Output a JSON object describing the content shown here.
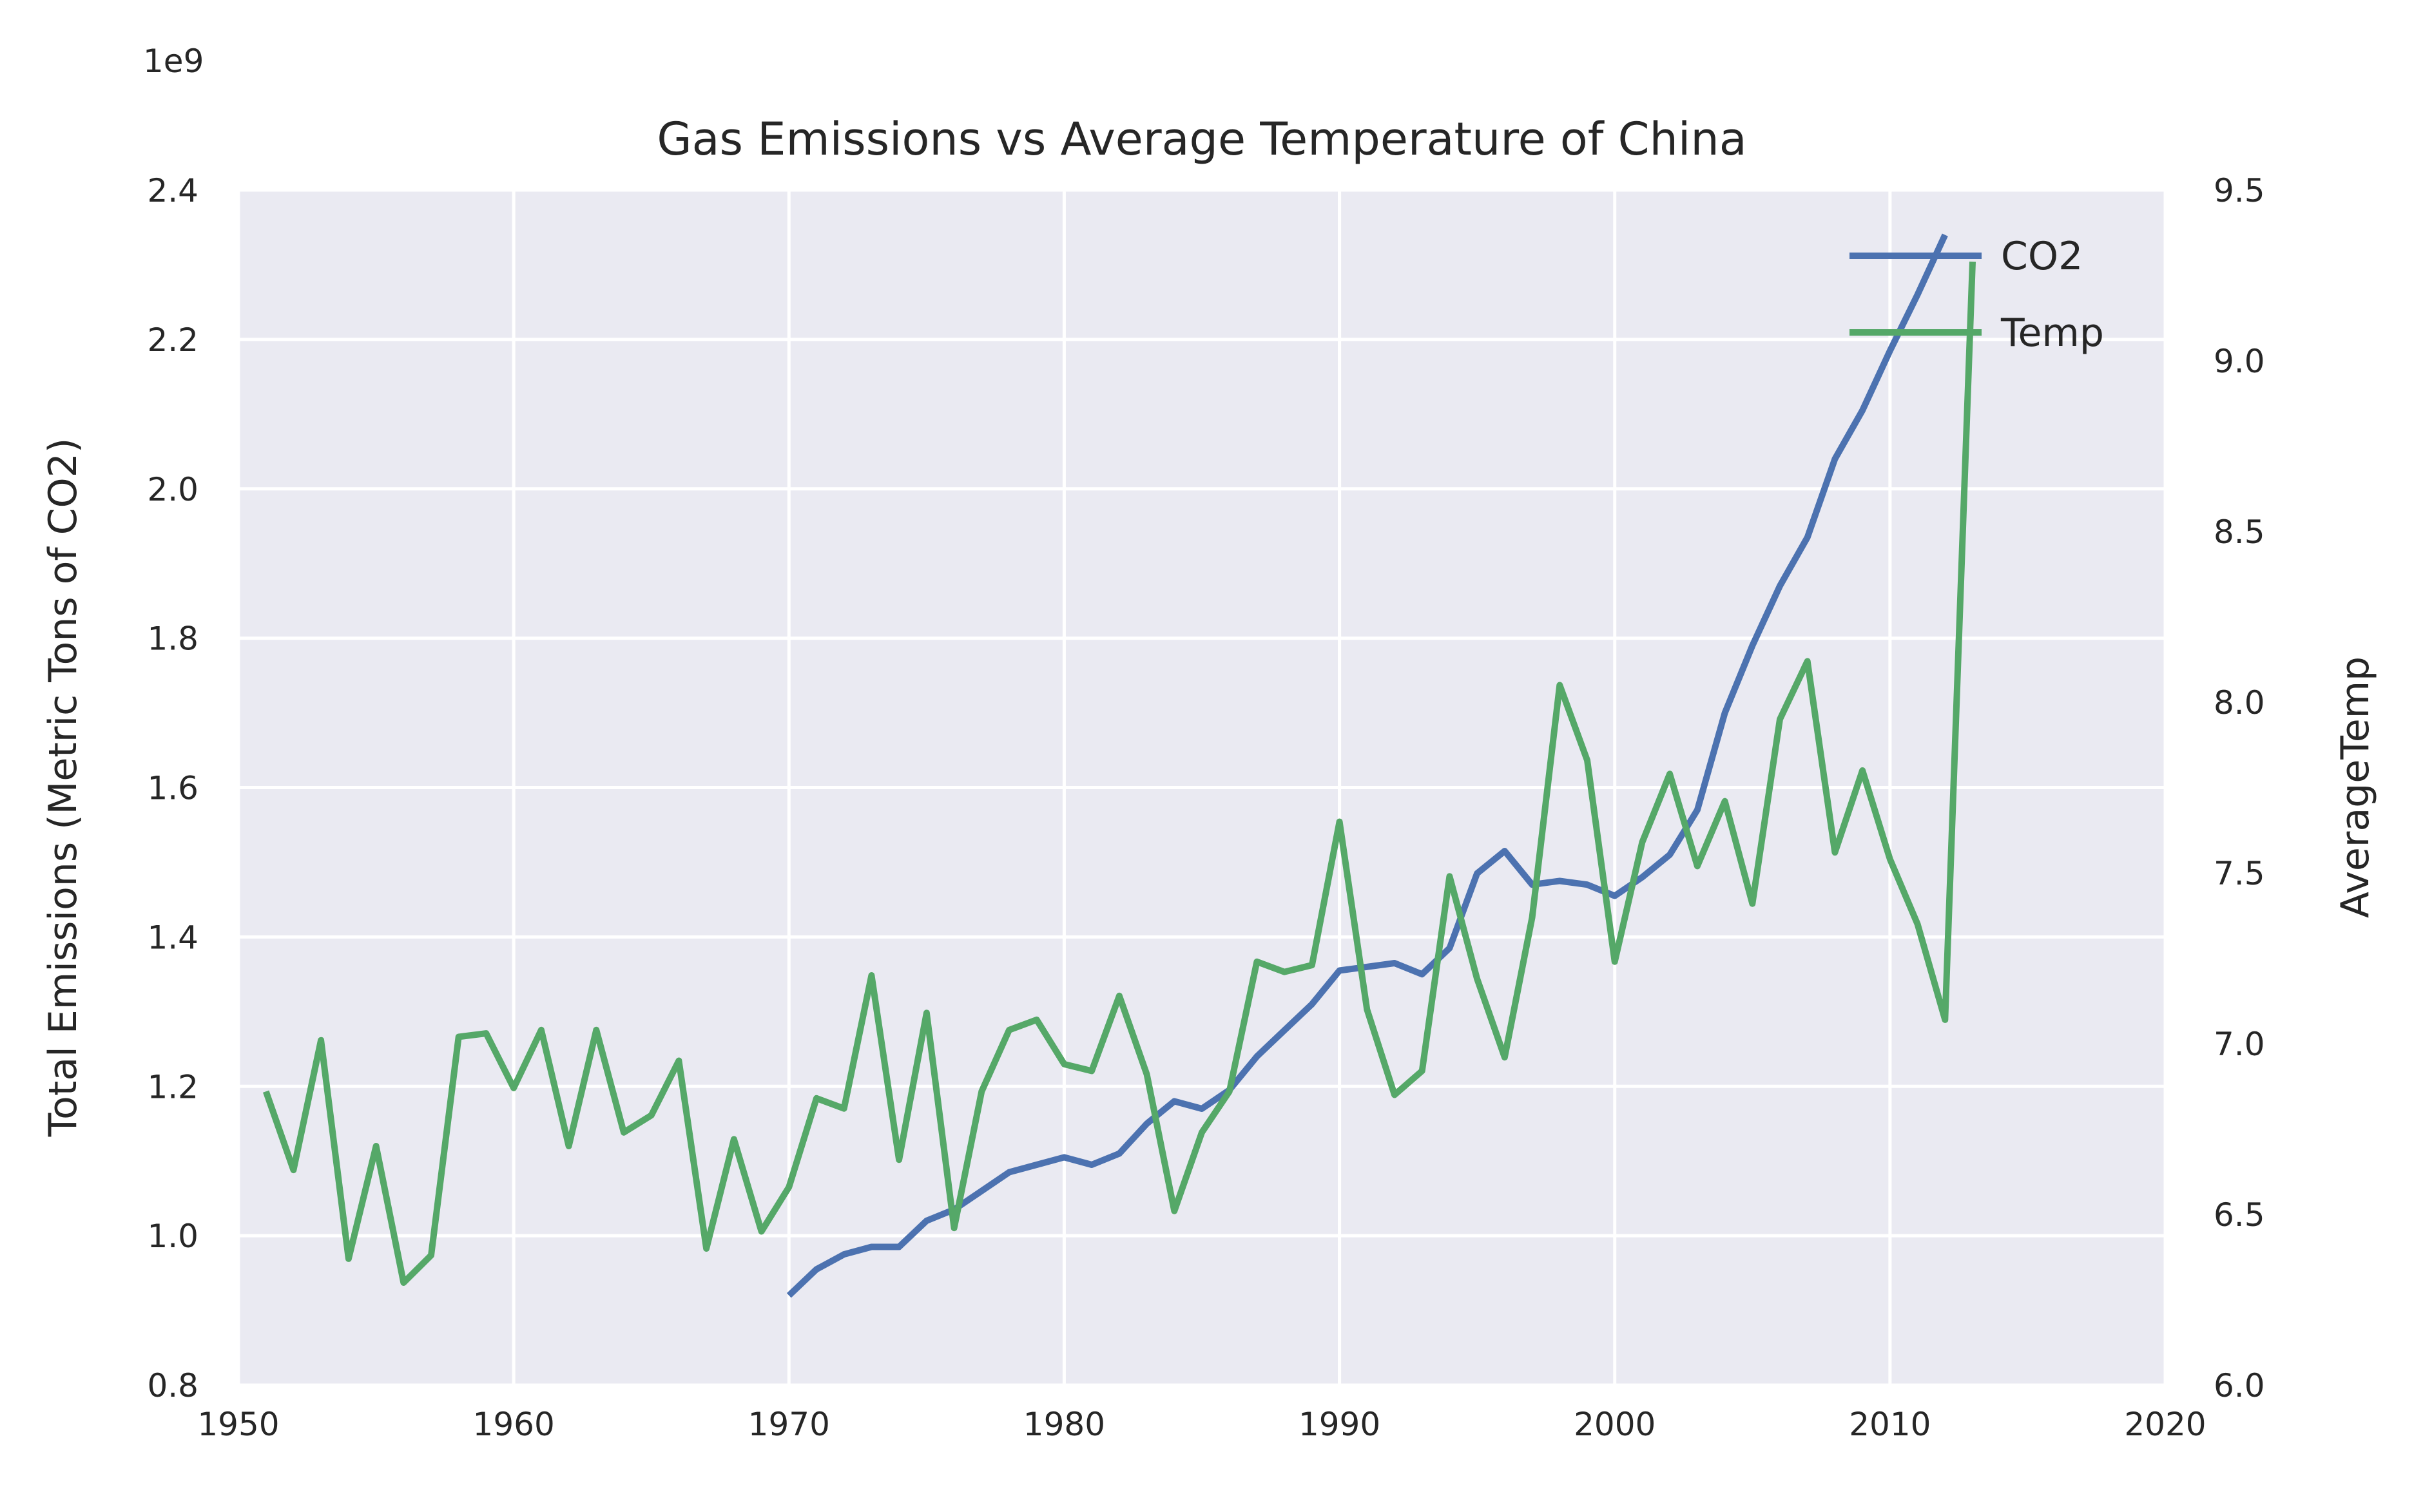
{
  "chart_data": {
    "type": "line",
    "title": "Gas Emissions vs Average Temperature of China",
    "xlabel": "",
    "ylabel": "Total Emissions (Metric Tons of CO2)",
    "ylabel_right": "AverageTemp",
    "left_axis_offset": "1e9",
    "xlim": [
      1950,
      2020
    ],
    "ylim": [
      0.8,
      2.4
    ],
    "ylim_right": [
      6.0,
      9.5
    ],
    "x_ticks": [
      "1950",
      "1960",
      "1970",
      "1980",
      "1990",
      "2000",
      "2010",
      "2020"
    ],
    "y_ticks": [
      "0.8",
      "1.0",
      "1.2",
      "1.4",
      "1.6",
      "1.8",
      "2.0",
      "2.2",
      "2.4"
    ],
    "y_ticks_right": [
      "6.0",
      "6.5",
      "7.0",
      "7.5",
      "8.0",
      "8.5",
      "9.0",
      "9.5"
    ],
    "grid": true,
    "legend_position": "top-right",
    "series": [
      {
        "name": "CO2",
        "axis": "left",
        "color": "#4c72b0",
        "x": [
          1970,
          1971,
          1972,
          1973,
          1974,
          1975,
          1976,
          1977,
          1978,
          1979,
          1980,
          1981,
          1982,
          1983,
          1984,
          1985,
          1986,
          1987,
          1988,
          1989,
          1990,
          1991,
          1992,
          1993,
          1994,
          1995,
          1996,
          1997,
          1998,
          1999,
          2000,
          2001,
          2002,
          2003,
          2004,
          2005,
          2006,
          2007,
          2008,
          2009,
          2010,
          2011,
          2012
        ],
        "values": [
          0.92,
          0.955,
          0.975,
          0.985,
          0.985,
          1.02,
          1.035,
          1.06,
          1.085,
          1.095,
          1.105,
          1.095,
          1.11,
          1.15,
          1.18,
          1.17,
          1.195,
          1.24,
          1.275,
          1.31,
          1.355,
          1.36,
          1.365,
          1.35,
          1.385,
          1.485,
          1.515,
          1.47,
          1.475,
          1.47,
          1.455,
          1.48,
          1.51,
          1.57,
          1.7,
          1.79,
          1.87,
          1.935,
          2.04,
          2.105,
          2.185,
          2.26,
          2.34
        ]
      },
      {
        "name": "Temp",
        "axis": "right",
        "color": "#55a868",
        "x": [
          1951,
          1952,
          1953,
          1954,
          1955,
          1956,
          1957,
          1958,
          1959,
          1960,
          1961,
          1962,
          1963,
          1964,
          1965,
          1966,
          1967,
          1968,
          1969,
          1970,
          1971,
          1972,
          1973,
          1974,
          1975,
          1976,
          1977,
          1978,
          1979,
          1980,
          1981,
          1982,
          1983,
          1984,
          1985,
          1986,
          1987,
          1988,
          1989,
          1990,
          1991,
          1992,
          1993,
          1994,
          1995,
          1996,
          1997,
          1998,
          1999,
          2000,
          2001,
          2002,
          2003,
          2004,
          2005,
          2006,
          2007,
          2008,
          2009,
          2010,
          2011,
          2012,
          2013
        ],
        "values": [
          6.86,
          6.63,
          7.01,
          6.37,
          6.7,
          6.3,
          6.38,
          7.02,
          7.03,
          6.87,
          7.04,
          6.7,
          7.04,
          6.74,
          6.79,
          6.95,
          6.4,
          6.72,
          6.45,
          6.58,
          6.84,
          6.81,
          7.2,
          6.66,
          7.09,
          6.46,
          6.86,
          7.04,
          7.07,
          6.94,
          6.92,
          7.14,
          6.91,
          6.51,
          6.74,
          6.86,
          7.24,
          7.21,
          7.23,
          7.65,
          7.1,
          6.85,
          6.92,
          7.49,
          7.19,
          6.96,
          7.37,
          8.05,
          7.83,
          7.24,
          7.59,
          7.79,
          7.52,
          7.71,
          7.41,
          7.95,
          8.12,
          7.56,
          7.8,
          7.54,
          7.35,
          7.07,
          9.29
        ]
      }
    ]
  }
}
